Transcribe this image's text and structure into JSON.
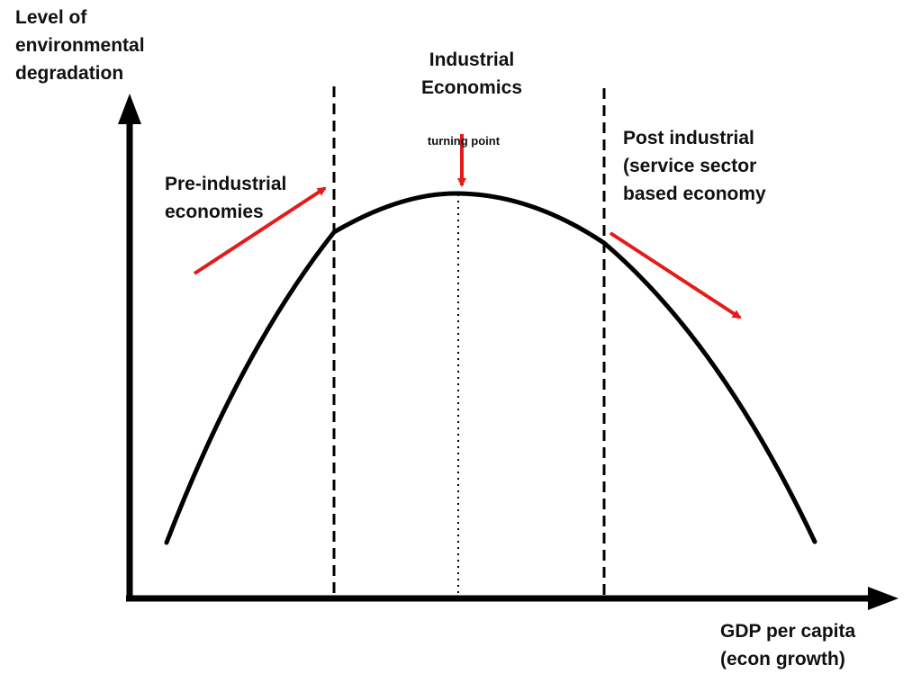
{
  "diagram": {
    "y_axis_label": "Level of\nenvironmental\ndegradation",
    "x_axis_label": "GDP per capita\n(econ growth)",
    "stages": {
      "pre": "Pre-industrial\neconomies",
      "industrial": "Industrial\nEconomics",
      "post": "Post industrial\n(service sector\nbased economy"
    },
    "turning_point": "turning point"
  },
  "colors": {
    "axis": "#000000",
    "curve": "#000000",
    "arrow": "#e31b1b",
    "text": "#111111"
  },
  "icons": {
    "pre_arrow": "arrow-up-right-icon",
    "turning_arrow": "arrow-down-icon",
    "post_arrow": "arrow-down-right-icon"
  }
}
